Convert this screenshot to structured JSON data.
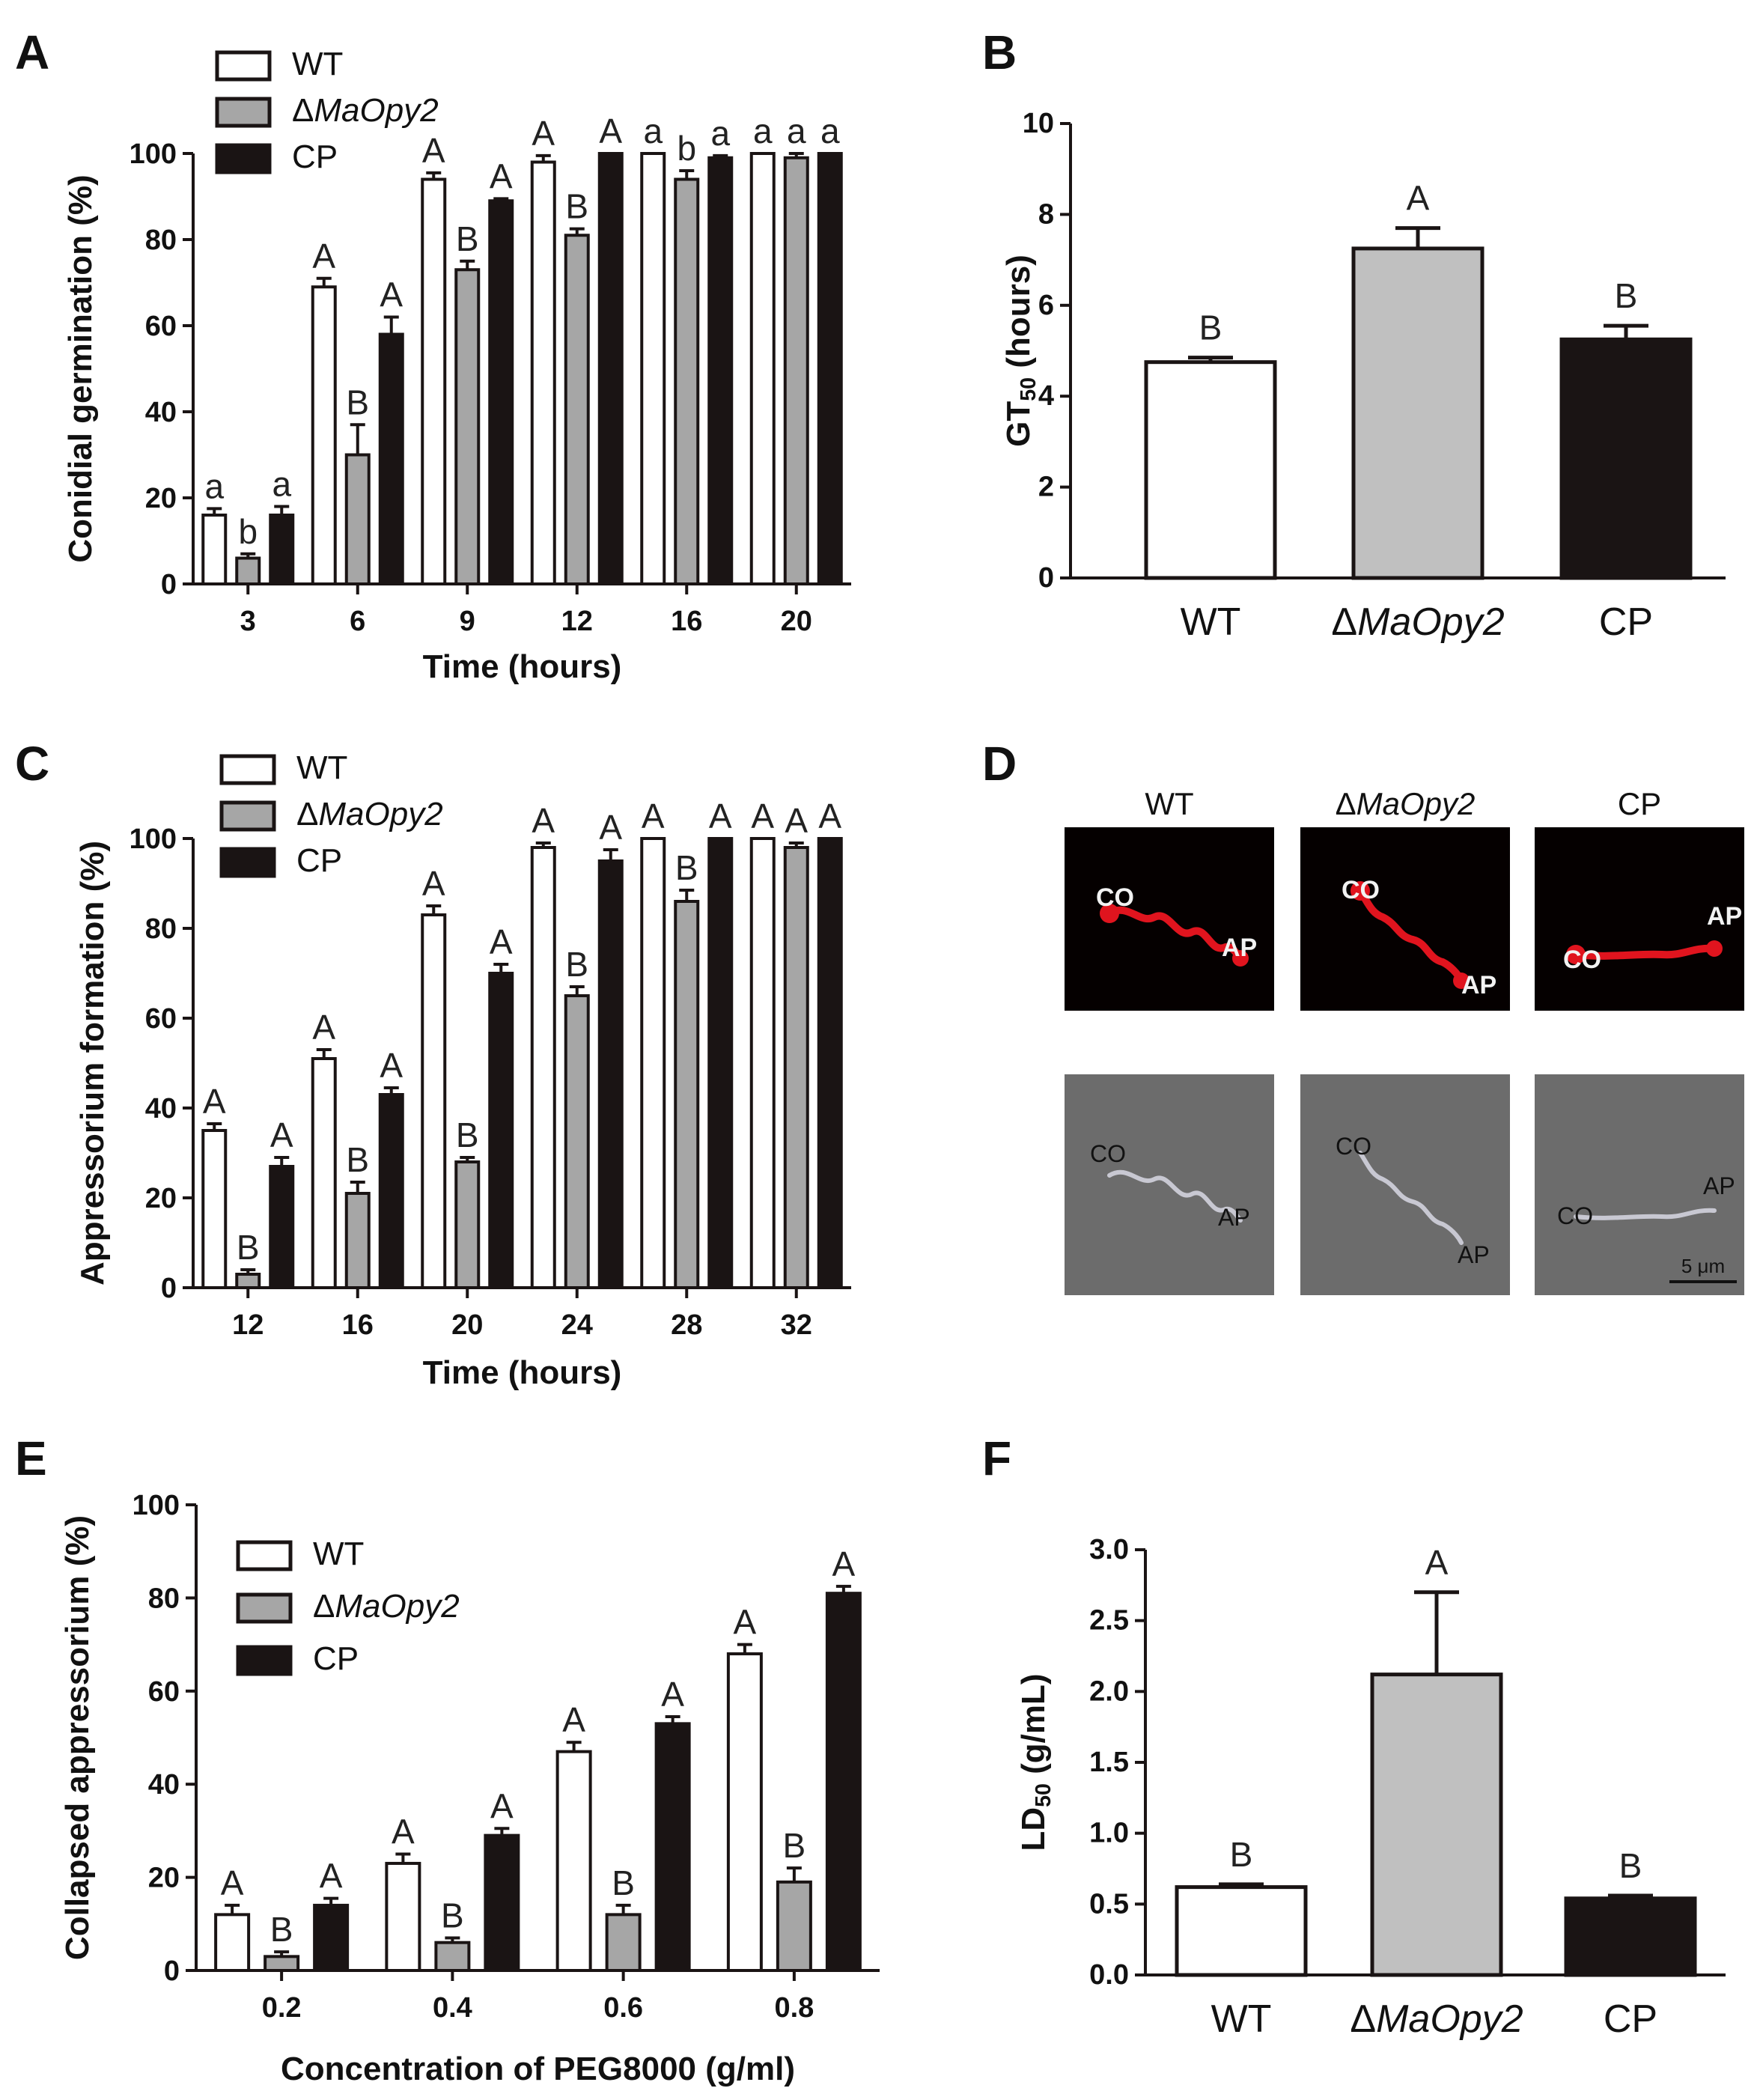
{
  "colors": {
    "wt": "#ffffff",
    "mutant": "#a6a6a6",
    "mutant_light": "#c0c0c0",
    "cp": "#1a1414",
    "stroke": "#1a1414",
    "fluor_bg": "#050000",
    "fluor_red": "#e0141e",
    "bright_bg": "#6c6c6c"
  },
  "legend": {
    "wt": "WT",
    "mutant": "ΔMaOpy2",
    "cp": "CP"
  },
  "chart_data": [
    {
      "id": "A",
      "type": "bar",
      "title": "A",
      "xlabel": "Time (hours)",
      "ylabel": "Conidial germination (%)",
      "ylim": [
        0,
        100
      ],
      "yticks": [
        "0",
        "20",
        "40",
        "60",
        "80",
        "100"
      ],
      "categories": [
        "3",
        "6",
        "9",
        "12",
        "16",
        "20"
      ],
      "series": [
        {
          "name": "WT",
          "values": [
            16,
            69,
            94,
            98,
            100,
            100
          ],
          "errors": [
            1.5,
            2,
            1.5,
            1.5,
            0,
            0
          ],
          "labels": [
            "a",
            "A",
            "A",
            "A",
            "a",
            "a"
          ]
        },
        {
          "name": "ΔMaOpy2",
          "values": [
            6,
            30,
            73,
            81,
            94,
            99
          ],
          "errors": [
            1,
            7,
            2,
            1.5,
            2,
            1
          ],
          "labels": [
            "b",
            "B",
            "B",
            "B",
            "b",
            "a"
          ]
        },
        {
          "name": "CP",
          "values": [
            16,
            58,
            89,
            100,
            99,
            100
          ],
          "errors": [
            2,
            4,
            0.5,
            0,
            0.5,
            0
          ],
          "labels": [
            "a",
            "A",
            "A",
            "A",
            "a",
            "a"
          ]
        }
      ]
    },
    {
      "id": "B",
      "type": "bar",
      "title": "B",
      "xlabel": "",
      "ylabel": "GT50 (hours)",
      "ylim": [
        0,
        10
      ],
      "yticks": [
        "0",
        "2",
        "4",
        "6",
        "8",
        "10"
      ],
      "categories": [
        "WT",
        "ΔMaOpy2",
        "CP"
      ],
      "values": [
        4.75,
        7.25,
        5.25
      ],
      "errors": [
        0.1,
        0.45,
        0.3
      ],
      "labels": [
        "B",
        "A",
        "B"
      ]
    },
    {
      "id": "C",
      "type": "bar",
      "title": "C",
      "xlabel": "Time (hours)",
      "ylabel": "Appressorium formation (%)",
      "ylim": [
        0,
        100
      ],
      "yticks": [
        "0",
        "20",
        "40",
        "60",
        "80",
        "100"
      ],
      "categories": [
        "12",
        "16",
        "20",
        "24",
        "28",
        "32"
      ],
      "series": [
        {
          "name": "WT",
          "values": [
            35,
            51,
            83,
            98,
            100,
            100
          ],
          "errors": [
            1.5,
            2,
            2,
            1,
            0,
            0
          ],
          "labels": [
            "A",
            "A",
            "A",
            "A",
            "A",
            "A"
          ]
        },
        {
          "name": "ΔMaOpy2",
          "values": [
            3,
            21,
            28,
            65,
            86,
            98
          ],
          "errors": [
            1,
            2.5,
            1,
            2,
            2.5,
            1
          ],
          "labels": [
            "B",
            "B",
            "B",
            "B",
            "B",
            "A"
          ]
        },
        {
          "name": "CP",
          "values": [
            27,
            43,
            70,
            95,
            100,
            100
          ],
          "errors": [
            2,
            1.5,
            2,
            2.5,
            0,
            0
          ],
          "labels": [
            "A",
            "A",
            "A",
            "A",
            "A",
            "A"
          ]
        }
      ]
    },
    {
      "id": "E",
      "type": "bar",
      "title": "E",
      "xlabel": "Concentration of PEG8000 (g/ml)",
      "ylabel": "Collapsed appressorium (%)",
      "ylim": [
        0,
        100
      ],
      "yticks": [
        "0",
        "20",
        "40",
        "60",
        "80",
        "100"
      ],
      "categories": [
        "0.2",
        "0.4",
        "0.6",
        "0.8"
      ],
      "series": [
        {
          "name": "WT",
          "values": [
            12,
            23,
            47,
            68
          ],
          "errors": [
            2,
            2,
            2,
            2
          ],
          "labels": [
            "A",
            "A",
            "A",
            "A"
          ]
        },
        {
          "name": "ΔMaOpy2",
          "values": [
            3,
            6,
            12,
            19
          ],
          "errors": [
            1,
            1,
            2,
            3
          ],
          "labels": [
            "B",
            "B",
            "B",
            "B"
          ]
        },
        {
          "name": "CP",
          "values": [
            14,
            29,
            53,
            81
          ],
          "errors": [
            1.5,
            1.5,
            1.5,
            1.5
          ],
          "labels": [
            "A",
            "A",
            "A",
            "A"
          ]
        }
      ]
    },
    {
      "id": "F",
      "type": "bar",
      "title": "F",
      "xlabel": "",
      "ylabel": "LD50 (g/mL)",
      "ylim": [
        0,
        3
      ],
      "yticks": [
        "0.0",
        "0.5",
        "1.0",
        "1.5",
        "2.0",
        "2.5",
        "3.0"
      ],
      "categories": [
        "WT",
        "ΔMaOpy2",
        "CP"
      ],
      "values": [
        0.62,
        2.12,
        0.54
      ],
      "errors": [
        0.02,
        0.58,
        0.02
      ],
      "labels": [
        "B",
        "A",
        "B"
      ]
    }
  ],
  "panel_d": {
    "letter": "D",
    "columns": [
      "WT",
      "ΔMaOpy2",
      "CP"
    ],
    "label_conidium": "CO",
    "label_appressorium": "AP",
    "scale_bar": "5 μm"
  }
}
